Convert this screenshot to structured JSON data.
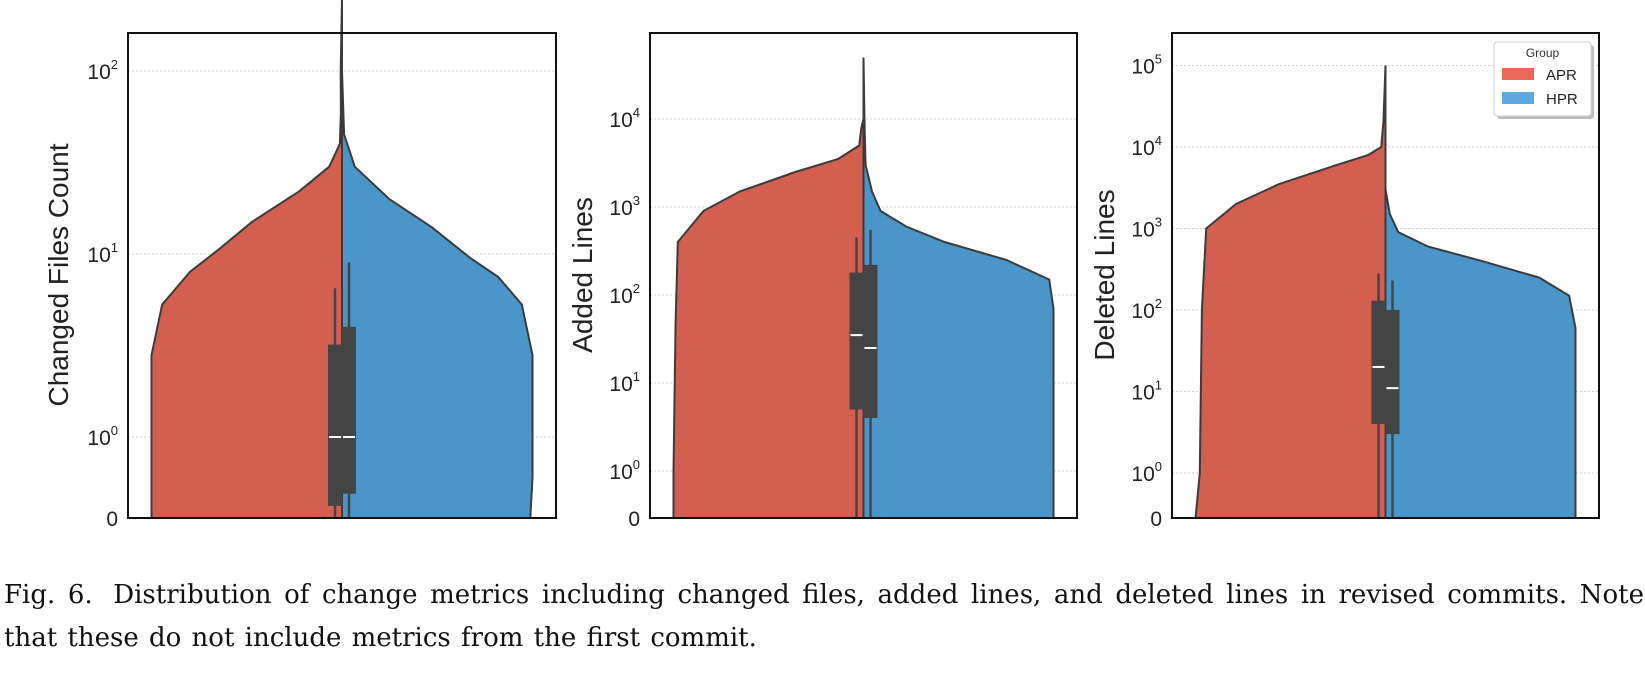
{
  "chart_data": [
    {
      "type": "violin",
      "ylabel": "Changed Files Count",
      "yscale": "symlog",
      "yticks": [
        {
          "value": 0,
          "label": "0"
        },
        {
          "value": 1,
          "base": "10",
          "exp": "0"
        },
        {
          "value": 10,
          "base": "10",
          "exp": "1"
        },
        {
          "value": 100,
          "base": "10",
          "exp": "2"
        }
      ],
      "ylim": [
        0,
        250
      ],
      "grid": true,
      "series": [
        {
          "name": "APR",
          "color": "#d35f50",
          "median": 1,
          "box": [
            0.15,
            3.2
          ],
          "whisker": [
            0,
            6.5
          ],
          "max": 250,
          "profile": [
            [
              0,
              0.89
            ],
            [
              0.5,
              0.89
            ],
            [
              2.8,
              0.89
            ],
            [
              5.3,
              0.84
            ],
            [
              8,
              0.71
            ],
            [
              10.5,
              0.58
            ],
            [
              15,
              0.42
            ],
            [
              22,
              0.2
            ],
            [
              30,
              0.06
            ],
            [
              40,
              0.01
            ],
            [
              60,
              0.005
            ],
            [
              100,
              0.006
            ],
            [
              250,
              0.0
            ]
          ]
        },
        {
          "name": "HPR",
          "color": "#4a96c8",
          "median": 1,
          "box": [
            0.3,
            4.0
          ],
          "whisker": [
            0,
            9
          ],
          "max": 100,
          "profile": [
            [
              0,
              0.88
            ],
            [
              0.5,
              0.89
            ],
            [
              2.8,
              0.89
            ],
            [
              5.3,
              0.84
            ],
            [
              7.5,
              0.73
            ],
            [
              9.5,
              0.6
            ],
            [
              14,
              0.42
            ],
            [
              20,
              0.22
            ],
            [
              30,
              0.06
            ],
            [
              45,
              0.01
            ],
            [
              100,
              0.0
            ]
          ]
        }
      ]
    },
    {
      "type": "violin",
      "ylabel": "Added Lines",
      "yscale": "symlog",
      "yticks": [
        {
          "value": 0,
          "label": "0"
        },
        {
          "value": 1,
          "base": "10",
          "exp": "0"
        },
        {
          "value": 10,
          "base": "10",
          "exp": "1"
        },
        {
          "value": 100,
          "base": "10",
          "exp": "2"
        },
        {
          "value": 1000,
          "base": "10",
          "exp": "3"
        },
        {
          "value": 10000,
          "base": "10",
          "exp": "4"
        }
      ],
      "ylim": [
        0,
        50000
      ],
      "grid": true,
      "series": [
        {
          "name": "APR",
          "color": "#d35f50",
          "median": 35,
          "box": [
            5,
            180
          ],
          "whisker": [
            0,
            450
          ],
          "max": 10000,
          "profile": [
            [
              0,
              0.89
            ],
            [
              1,
              0.89
            ],
            [
              50,
              0.88
            ],
            [
              400,
              0.87
            ],
            [
              900,
              0.75
            ],
            [
              1500,
              0.58
            ],
            [
              2500,
              0.32
            ],
            [
              3500,
              0.12
            ],
            [
              5000,
              0.02
            ],
            [
              8000,
              0.01
            ],
            [
              10000,
              0.0
            ]
          ]
        },
        {
          "name": "HPR",
          "color": "#4a96c8",
          "median": 25,
          "box": [
            4,
            220
          ],
          "whisker": [
            0,
            550
          ],
          "max": 50000,
          "profile": [
            [
              0,
              0.89
            ],
            [
              1,
              0.89
            ],
            [
              70,
              0.89
            ],
            [
              150,
              0.87
            ],
            [
              250,
              0.67
            ],
            [
              400,
              0.38
            ],
            [
              600,
              0.2
            ],
            [
              900,
              0.08
            ],
            [
              1500,
              0.04
            ],
            [
              3000,
              0.01
            ],
            [
              8000,
              0.005
            ],
            [
              50000,
              0.0
            ]
          ]
        }
      ]
    },
    {
      "type": "violin",
      "ylabel": "Deleted Lines",
      "yscale": "symlog",
      "yticks": [
        {
          "value": 0,
          "label": "0"
        },
        {
          "value": 1,
          "base": "10",
          "exp": "0"
        },
        {
          "value": 10,
          "base": "10",
          "exp": "1"
        },
        {
          "value": 100,
          "base": "10",
          "exp": "2"
        },
        {
          "value": 1000,
          "base": "10",
          "exp": "3"
        },
        {
          "value": 10000,
          "base": "10",
          "exp": "4"
        },
        {
          "value": 100000,
          "base": "10",
          "exp": "5"
        }
      ],
      "ylim": [
        0,
        100000
      ],
      "grid": true,
      "series": [
        {
          "name": "APR",
          "color": "#d35f50",
          "median": 20,
          "box": [
            4,
            130
          ],
          "whisker": [
            0,
            280
          ],
          "max": 100000,
          "profile": [
            [
              0,
              0.89
            ],
            [
              1,
              0.87
            ],
            [
              100,
              0.86
            ],
            [
              1000,
              0.84
            ],
            [
              2000,
              0.7
            ],
            [
              3500,
              0.5
            ],
            [
              6000,
              0.23
            ],
            [
              8000,
              0.08
            ],
            [
              10000,
              0.02
            ],
            [
              20000,
              0.01
            ],
            [
              100000,
              0.0
            ]
          ]
        },
        {
          "name": "HPR",
          "color": "#4a96c8",
          "median": 11,
          "box": [
            3,
            100
          ],
          "whisker": [
            0,
            230
          ],
          "max": 3000,
          "profile": [
            [
              0,
              0.89
            ],
            [
              1,
              0.89
            ],
            [
              60,
              0.89
            ],
            [
              150,
              0.86
            ],
            [
              250,
              0.72
            ],
            [
              400,
              0.45
            ],
            [
              600,
              0.2
            ],
            [
              900,
              0.06
            ],
            [
              1500,
              0.02
            ],
            [
              3000,
              0.0
            ]
          ]
        }
      ],
      "legend": {
        "title": "Group",
        "placement": "top-right",
        "entries": [
          {
            "label": "APR",
            "color": "#e8695a"
          },
          {
            "label": "HPR",
            "color": "#5ba9df"
          }
        ]
      }
    }
  ],
  "caption": {
    "label": "Fig. 6.",
    "text": "Distribution of change metrics including changed files, added lines, and deleted lines in revised commits. Note that these do not include metrics from the first commit."
  }
}
